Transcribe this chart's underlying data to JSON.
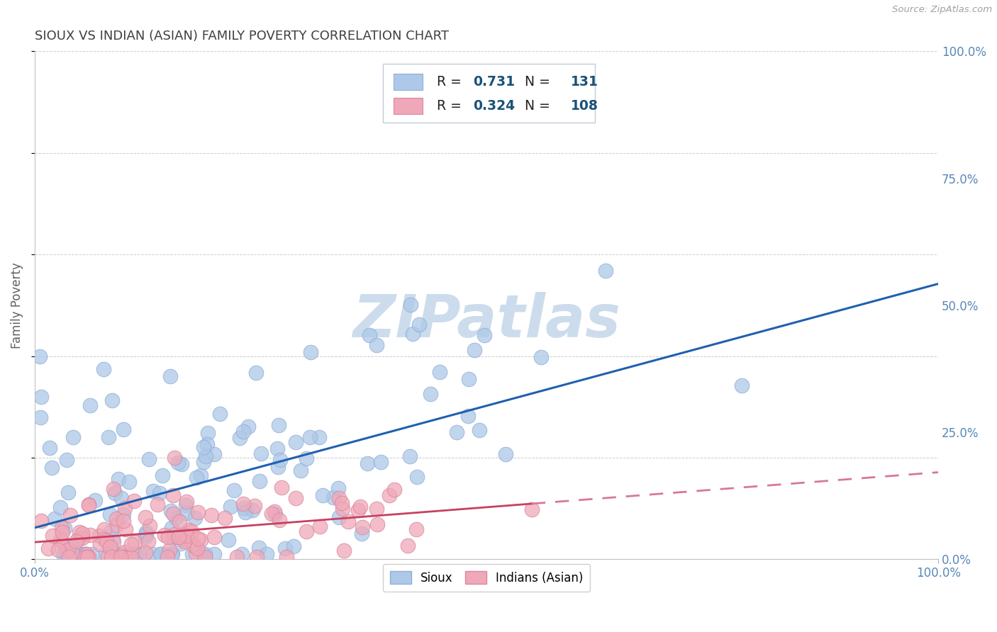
{
  "title": "SIOUX VS INDIAN (ASIAN) FAMILY POVERTY CORRELATION CHART",
  "source": "Source: ZipAtlas.com",
  "ylabel": "Family Poverty",
  "yticks": [
    "0.0%",
    "25.0%",
    "50.0%",
    "75.0%",
    "100.0%"
  ],
  "ytick_vals": [
    0.0,
    0.25,
    0.5,
    0.75,
    1.0
  ],
  "xlim": [
    0.0,
    1.0
  ],
  "ylim": [
    0.0,
    1.0
  ],
  "sioux_R": 0.731,
  "sioux_N": 131,
  "indian_R": 0.324,
  "indian_N": 108,
  "sioux_color": "#adc8e8",
  "sioux_edge_color": "#90b0d8",
  "sioux_line_color": "#2060b0",
  "indian_color": "#f0a8b8",
  "indian_edge_color": "#d888a0",
  "indian_line_color": "#c84060",
  "indian_dash_color": "#d87898",
  "background_color": "#ffffff",
  "grid_color": "#cccccc",
  "title_color": "#404040",
  "r_label_color": "#000000",
  "n_label_color": "#1a5276",
  "watermark_color": "#ccdcec",
  "legend_box_color": "#e8f0f8",
  "legend_edge_color": "#c0ccd8"
}
